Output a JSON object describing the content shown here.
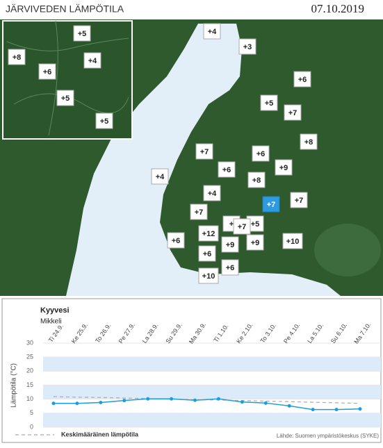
{
  "header": {
    "title": "JÄRVIVEDEN LÄMPÖTILA",
    "date": "07.10.2019"
  },
  "map": {
    "labels": [
      "+5",
      "+8",
      "+4",
      "+6",
      "+5",
      "+5",
      "+4",
      "+3",
      "+6",
      "+5",
      "+7",
      "+8",
      "+7",
      "+6",
      "+9",
      "+6",
      "+4",
      "+8",
      "+4",
      "+7",
      "+7",
      "+7",
      "+",
      "+5",
      "+7",
      "+12",
      "+6",
      "+9",
      "+9",
      "+10",
      "+6",
      "+6",
      "+10"
    ],
    "selected": 19
  },
  "chart_data": {
    "type": "line",
    "title": "Kyyvesi",
    "subtitle": "Mikkeli",
    "y_label": "Lämpötila (°C)",
    "source": "Lähde: Suomen ympäristökeskus (SYKE)",
    "categories": [
      "Ti 24.9.",
      "Ke 25.9.",
      "To 26.9.",
      "Pe 27.9.",
      "La 28.9.",
      "Su 29.9.",
      "Ma 30.9.",
      "Ti 1.10.",
      "Ke 2.10.",
      "To 3.10.",
      "Pe 4.10.",
      "La 5.10.",
      "Su 6.10.",
      "Ma 7.10."
    ],
    "series": [
      {
        "color": "#1a9ee0",
        "values": [
          8.5,
          8.5,
          8.8,
          9.5,
          10.1,
          10.1,
          9.6,
          10.1,
          9.0,
          8.6,
          7.6,
          6.3,
          6.3,
          6.5
        ]
      },
      {
        "name": "Keskimääräinen lämpötila",
        "color": "#aaaaaa",
        "dashed": true,
        "values": [
          10.9,
          10.7,
          10.6,
          10.4,
          10.2,
          10.0,
          9.8,
          9.7,
          9.5,
          9.3,
          9.1,
          8.9,
          8.7,
          8.5
        ]
      }
    ],
    "ylim": [
      0,
      30
    ],
    "yticks": [
      0,
      5,
      10,
      15,
      20,
      25,
      30
    ],
    "band_color": "#dcebfa"
  }
}
